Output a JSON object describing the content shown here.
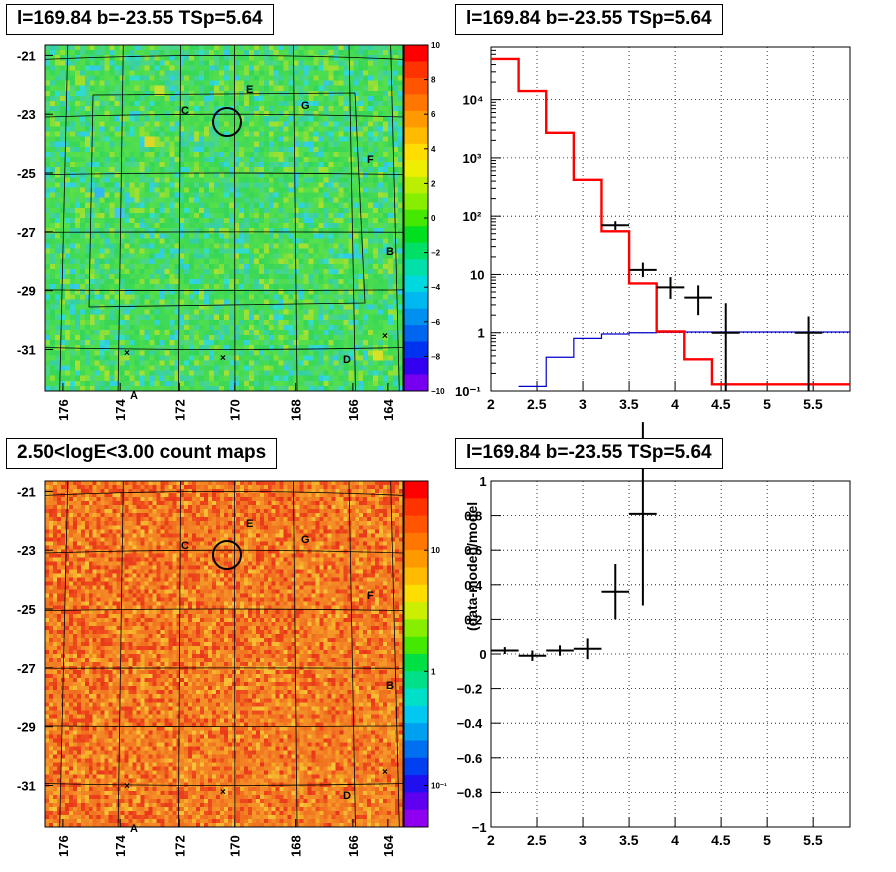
{
  "panels": {
    "top_left_title": "l=169.84 b=-23.55 TSp=5.64",
    "top_right_title": "l=169.84 b=-23.55 TSp=5.64",
    "bottom_left_title": "2.50<logE<3.00 count maps",
    "bottom_right_title": "l=169.84 b=-23.55 TSp=5.64"
  },
  "chart_data": [
    {
      "type": "heatmap",
      "title": "l=169.84 b=-23.55 TSp=5.64",
      "x_ticks": [
        "176",
        "174",
        "172",
        "170",
        "168",
        "166",
        "164"
      ],
      "y_ticks": [
        "-21",
        "-23",
        "-25",
        "-27",
        "-29",
        "-31"
      ],
      "colorbar_ticks": [
        "10",
        "8",
        "6",
        "4",
        "2",
        "0",
        "−2",
        "−4",
        "−6",
        "−8",
        "−10"
      ],
      "colorbar_range": [
        -10,
        10
      ],
      "labels": [
        "A",
        "B",
        "C",
        "D",
        "E",
        "F",
        "G"
      ],
      "circle_center": {
        "l": 169.84,
        "b": -23.55
      },
      "colors": {
        "background": "#33d65a",
        "high": "#ff7a1a",
        "low": "#33c9e8"
      }
    },
    {
      "type": "line",
      "title": "l=169.84 b=-23.55 TSp=5.64",
      "y_scale": "log",
      "xlim": [
        2,
        5.9
      ],
      "ylim": [
        0.1,
        80000
      ],
      "x_ticks": [
        "2",
        "2.5",
        "3",
        "3.5",
        "4",
        "4.5",
        "5",
        "5.5"
      ],
      "y_ticks": [
        "10⁻¹",
        "1",
        "10",
        "10²",
        "10³",
        "10⁴"
      ],
      "series": [
        {
          "color": "#ff0000",
          "type": "step",
          "edges": [
            2.0,
            2.3,
            2.6,
            2.9,
            3.2,
            3.5,
            3.8,
            4.1,
            4.4,
            5.9
          ],
          "values": [
            50000,
            14000,
            2700,
            420,
            55,
            7,
            1.05,
            0.35,
            0.13
          ]
        },
        {
          "color": "#0000cc",
          "type": "step",
          "edges": [
            2.3,
            2.6,
            2.9,
            3.2,
            3.5,
            3.8,
            4.1,
            5.9
          ],
          "values": [
            0.12,
            0.38,
            0.8,
            0.95,
            1.0,
            1.02,
            1.03
          ]
        },
        {
          "color": "#000000",
          "type": "errorbar",
          "points": [
            {
              "x": 3.35,
              "xerr": 0.15,
              "y": 70,
              "ylo": 58,
              "yhi": 82
            },
            {
              "x": 3.65,
              "xerr": 0.15,
              "y": 12,
              "ylo": 9,
              "yhi": 16
            },
            {
              "x": 3.95,
              "xerr": 0.15,
              "y": 6,
              "ylo": 3.8,
              "yhi": 9
            },
            {
              "x": 4.25,
              "xerr": 0.15,
              "y": 4,
              "ylo": 2,
              "yhi": 6.5
            },
            {
              "x": 4.55,
              "xerr": 0.15,
              "y": 1,
              "ylo": 0.1,
              "yhi": 3.2
            },
            {
              "x": 5.45,
              "xerr": 0.15,
              "y": 1,
              "ylo": 0.1,
              "yhi": 1.9
            }
          ]
        }
      ]
    },
    {
      "type": "heatmap",
      "title": "2.50<logE<3.00 count maps",
      "x_ticks": [
        "176",
        "174",
        "172",
        "170",
        "168",
        "166",
        "164"
      ],
      "y_ticks": [
        "-21",
        "-23",
        "-25",
        "-27",
        "-29",
        "-31"
      ],
      "colorbar_ticks": [
        "10",
        "1",
        "10⁻¹"
      ],
      "colorbar_scale": "log",
      "labels": [
        "A",
        "B",
        "C",
        "D",
        "E",
        "F",
        "G"
      ],
      "circle_center": {
        "l": 169.84,
        "b": -23.55
      },
      "colors": {
        "background": "#f06a1e",
        "high": "#e8351a",
        "low": "#f5a623"
      }
    },
    {
      "type": "scatter",
      "title": "l=169.84 b=-23.55 TSp=5.64",
      "ylabel": "(data-model)/model",
      "xlim": [
        2,
        5.9
      ],
      "ylim": [
        -1,
        1
      ],
      "x_ticks": [
        "2",
        "2.5",
        "3",
        "3.5",
        "4",
        "4.5",
        "5",
        "5.5"
      ],
      "y_ticks": [
        "−1",
        "−0.8",
        "−0.6",
        "−0.4",
        "−0.2",
        "0",
        "0.2",
        "0.4",
        "0.6",
        "0.8",
        "1"
      ],
      "points": [
        {
          "x": 2.15,
          "xerr": 0.15,
          "y": 0.02,
          "yerr": 0.02
        },
        {
          "x": 2.45,
          "xerr": 0.15,
          "y": -0.01,
          "yerr": 0.03
        },
        {
          "x": 2.75,
          "xerr": 0.15,
          "y": 0.02,
          "yerr": 0.03
        },
        {
          "x": 3.05,
          "xerr": 0.15,
          "y": 0.03,
          "yerr": 0.06
        },
        {
          "x": 3.35,
          "xerr": 0.15,
          "y": 0.36,
          "yerr": 0.16
        },
        {
          "x": 3.65,
          "xerr": 0.15,
          "y": 0.81,
          "yerr": 0.53
        }
      ]
    }
  ]
}
